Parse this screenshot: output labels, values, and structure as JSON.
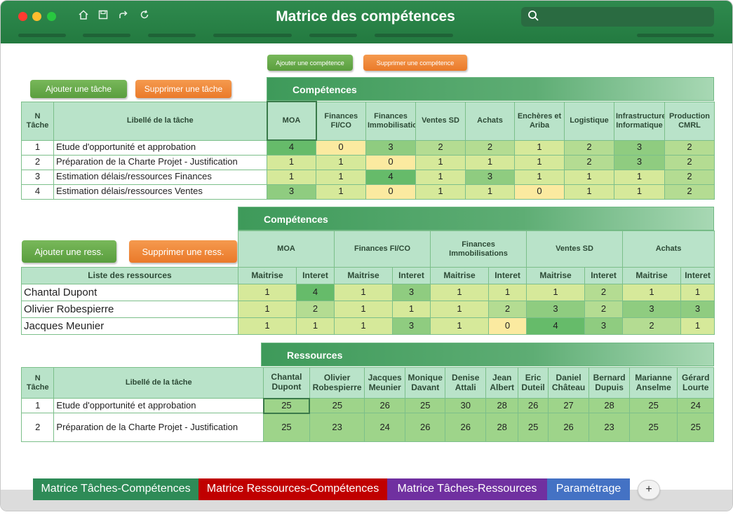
{
  "window": {
    "title": "Matrice des compétences"
  },
  "toolbar": {
    "icons": [
      "home-icon",
      "save-icon",
      "share-icon",
      "refresh-icon"
    ]
  },
  "buttons": {
    "add_competence": "Ajouter une compétence",
    "del_competence": "Supprimer une compétence",
    "add_task": "Ajouter une tâche",
    "del_task": "Supprimer une tâche",
    "add_res": "Ajouter une ress.",
    "del_res": "Supprimer une ress."
  },
  "table1": {
    "banner": "Compétences",
    "h_n": "N Tâche",
    "h_label": "Libellé de la tâche",
    "competences": [
      "MOA",
      "Finances FI/CO",
      "Finances Immobilisations",
      "Ventes SD",
      "Achats",
      "Enchères et Ariba",
      "Logistique",
      "Infrastructure Informatique",
      "Production CMRL"
    ],
    "rows": [
      {
        "n": "1",
        "label": "Etude d'opportunité et approbation",
        "values": [
          "4",
          "0",
          "3",
          "2",
          "2",
          "1",
          "2",
          "3",
          "2"
        ]
      },
      {
        "n": "2",
        "label": "Préparation de la Charte Projet - Justification",
        "values": [
          "1",
          "1",
          "0",
          "1",
          "1",
          "1",
          "2",
          "3",
          "2"
        ]
      },
      {
        "n": "3",
        "label": "Estimation délais/ressources Finances",
        "values": [
          "1",
          "1",
          "4",
          "1",
          "3",
          "1",
          "1",
          "1",
          "2"
        ]
      },
      {
        "n": "4",
        "label": "Estimation délais/ressources Ventes",
        "values": [
          "3",
          "1",
          "0",
          "1",
          "1",
          "0",
          "1",
          "1",
          "2"
        ]
      }
    ]
  },
  "table2": {
    "banner": "Compétences",
    "h_list": "Liste des ressources",
    "competences": [
      "MOA",
      "Finances FI/CO",
      "Finances Immobilisations",
      "Ventes SD",
      "Achats"
    ],
    "sub_maitrise": "Maitrise",
    "sub_interet": "Interet",
    "rows": [
      {
        "name": "Chantal Dupont",
        "values": [
          "1",
          "4",
          "1",
          "3",
          "1",
          "1",
          "1",
          "2",
          "1",
          "1"
        ]
      },
      {
        "name": "Olivier Robespierre",
        "values": [
          "1",
          "2",
          "1",
          "1",
          "1",
          "2",
          "3",
          "2",
          "3",
          "3"
        ]
      },
      {
        "name": "Jacques Meunier",
        "values": [
          "1",
          "1",
          "1",
          "3",
          "1",
          "0",
          "4",
          "3",
          "2",
          "1"
        ]
      }
    ]
  },
  "table3": {
    "banner": "Ressources",
    "h_n": "N Tâche",
    "h_label": "Libellé de la tâche",
    "resources": [
      "Chantal Dupont",
      "Olivier Robespierre",
      "Jacques Meunier",
      "Monique Davant",
      "Denise Attali",
      "Jean Albert",
      "Eric Duteil",
      "Daniel Château",
      "Bernard Dupuis",
      "Marianne Anselme",
      "Gérard Lourte"
    ],
    "rows": [
      {
        "n": "1",
        "label": "Etude d'opportunité et approbation",
        "values": [
          "25",
          "25",
          "26",
          "25",
          "30",
          "28",
          "26",
          "27",
          "28",
          "25",
          "24"
        ]
      },
      {
        "n": "2",
        "label": "Préparation de la Charte Projet - Justification",
        "values": [
          "25",
          "23",
          "24",
          "26",
          "26",
          "28",
          "25",
          "26",
          "23",
          "25",
          "25"
        ]
      }
    ]
  },
  "sheet_tabs": [
    {
      "label": "Matrice Tâches-Compétences",
      "color": "#2e8b57"
    },
    {
      "label": "Matrice Ressources-Compétences",
      "color": "#c00000"
    },
    {
      "label": "Matrice Tâches-Ressources",
      "color": "#7030a0"
    },
    {
      "label": "Paramétrage",
      "color": "#4472c4"
    }
  ],
  "add_sheet": "+"
}
